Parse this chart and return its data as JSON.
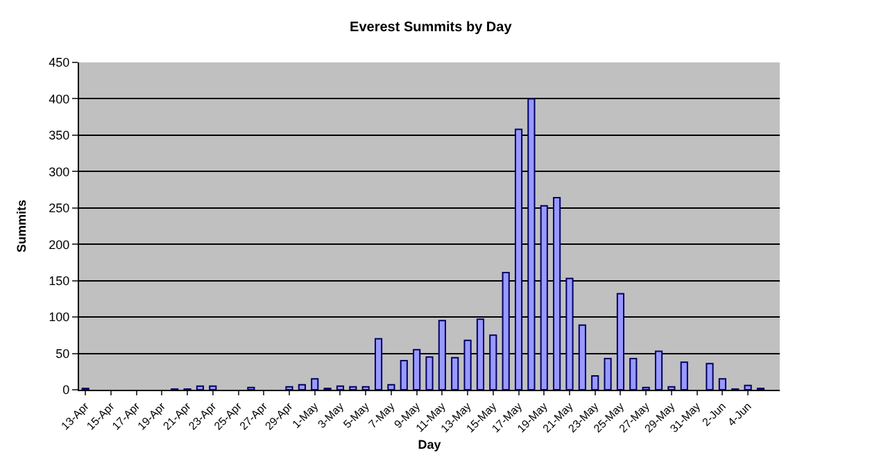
{
  "chart_data": {
    "type": "bar",
    "title": "Everest Summits by Day",
    "xlabel": "Day",
    "ylabel": "Summits",
    "categories": [
      "13-Apr",
      null,
      "15-Apr",
      null,
      "17-Apr",
      null,
      "19-Apr",
      null,
      "21-Apr",
      null,
      "23-Apr",
      null,
      "25-Apr",
      null,
      "27-Apr",
      null,
      "29-Apr",
      null,
      "1-May",
      null,
      "3-May",
      null,
      "5-May",
      null,
      "7-May",
      null,
      "9-May",
      null,
      "11-May",
      null,
      "13-May",
      null,
      "15-May",
      null,
      "17-May",
      null,
      "19-May",
      null,
      "21-May",
      null,
      "23-May",
      null,
      "25-May",
      null,
      "27-May",
      null,
      "29-May",
      null,
      "31-May",
      null,
      "2-Jun",
      null,
      "4-Jun",
      null,
      null
    ],
    "values": [
      2,
      0,
      0,
      0,
      0,
      0,
      0,
      1,
      1,
      5,
      5,
      0,
      0,
      3,
      0,
      0,
      4,
      7,
      15,
      2,
      5,
      4,
      4,
      70,
      7,
      40,
      55,
      45,
      95,
      44,
      68,
      97,
      75,
      161,
      358,
      400,
      253,
      264,
      153,
      89,
      19,
      43,
      132,
      43,
      3,
      53,
      4,
      38,
      0,
      36,
      15,
      1,
      6,
      2,
      0
    ],
    "color": "#9999ff",
    "ylim": [
      0,
      450
    ],
    "yticks": [
      0,
      50,
      100,
      150,
      200,
      250,
      300,
      350,
      400,
      450
    ],
    "grid": "y"
  }
}
